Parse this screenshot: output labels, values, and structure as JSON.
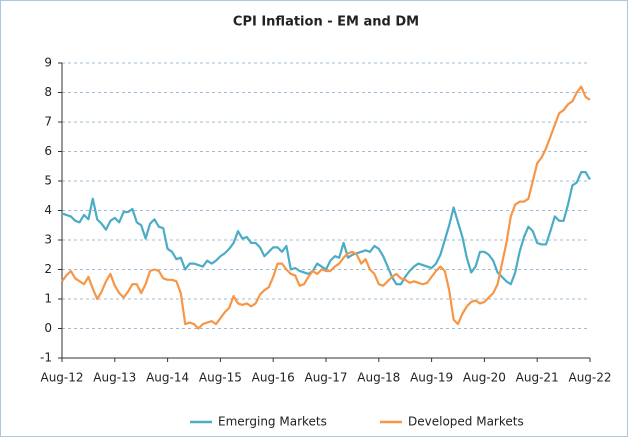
{
  "chart_data": {
    "type": "line",
    "title": "CPI Inflation - EM and DM",
    "categories": [
      "Aug-12",
      null,
      null,
      null,
      null,
      null,
      null,
      null,
      null,
      null,
      null,
      null,
      "Aug-13",
      null,
      null,
      null,
      null,
      null,
      null,
      null,
      null,
      null,
      null,
      null,
      "Aug-14",
      null,
      null,
      null,
      null,
      null,
      null,
      null,
      null,
      null,
      null,
      null,
      "Aug-15",
      null,
      null,
      null,
      null,
      null,
      null,
      null,
      null,
      null,
      null,
      null,
      "Aug-16",
      null,
      null,
      null,
      null,
      null,
      null,
      null,
      null,
      null,
      null,
      null,
      "Aug-17",
      null,
      null,
      null,
      null,
      null,
      null,
      null,
      null,
      null,
      null,
      null,
      "Aug-18",
      null,
      null,
      null,
      null,
      null,
      null,
      null,
      null,
      null,
      null,
      null,
      "Aug-19",
      null,
      null,
      null,
      null,
      null,
      null,
      null,
      null,
      null,
      null,
      null,
      "Aug-20",
      null,
      null,
      null,
      null,
      null,
      null,
      null,
      null,
      null,
      null,
      null,
      "Aug-21",
      null,
      null,
      null,
      null,
      null,
      null,
      null,
      null,
      null,
      null,
      null,
      "Aug-22"
    ],
    "series": [
      {
        "name": "Emerging Markets",
        "color": "#4bacc6",
        "values": [
          3.9,
          3.85,
          3.8,
          3.65,
          3.6,
          3.85,
          3.7,
          4.4,
          3.7,
          3.55,
          3.35,
          3.65,
          3.75,
          3.6,
          3.95,
          3.95,
          4.05,
          3.6,
          3.5,
          3.05,
          3.55,
          3.7,
          3.45,
          3.4,
          2.7,
          2.6,
          2.35,
          2.4,
          2.0,
          2.2,
          2.2,
          2.15,
          2.1,
          2.3,
          2.2,
          2.3,
          2.45,
          2.55,
          2.7,
          2.9,
          3.3,
          3.05,
          3.1,
          2.9,
          2.9,
          2.75,
          2.45,
          2.6,
          2.75,
          2.75,
          2.6,
          2.8,
          2.0,
          2.05,
          1.95,
          1.9,
          1.85,
          1.95,
          2.2,
          2.1,
          2.0,
          2.3,
          2.45,
          2.4,
          2.9,
          2.4,
          2.5,
          2.55,
          2.6,
          2.65,
          2.6,
          2.8,
          2.7,
          2.45,
          2.1,
          1.75,
          1.5,
          1.5,
          1.75,
          1.95,
          2.1,
          2.2,
          2.15,
          2.1,
          2.05,
          2.2,
          2.5,
          3.0,
          3.5,
          4.1,
          3.6,
          3.1,
          2.4,
          1.9,
          2.1,
          2.6,
          2.6,
          2.5,
          2.3,
          1.9,
          1.75,
          1.6,
          1.5,
          1.9,
          2.6,
          3.1,
          3.45,
          3.3,
          2.9,
          2.85,
          2.85,
          3.3,
          3.8,
          3.65,
          3.65,
          4.2,
          4.85,
          4.95,
          5.3,
          5.3,
          5.05
        ]
      },
      {
        "name": "Developed Markets",
        "color": "#f79646",
        "values": [
          1.6,
          1.8,
          1.95,
          1.7,
          1.6,
          1.5,
          1.75,
          1.35,
          1.0,
          1.25,
          1.6,
          1.85,
          1.45,
          1.2,
          1.05,
          1.25,
          1.5,
          1.5,
          1.2,
          1.5,
          1.95,
          2.0,
          1.95,
          1.7,
          1.65,
          1.65,
          1.6,
          1.2,
          0.15,
          0.2,
          0.15,
          0.0,
          0.15,
          0.2,
          0.25,
          0.15,
          0.35,
          0.55,
          0.7,
          1.1,
          0.85,
          0.8,
          0.85,
          0.75,
          0.85,
          1.15,
          1.3,
          1.4,
          1.75,
          2.2,
          2.2,
          2.0,
          1.85,
          1.8,
          1.45,
          1.5,
          1.75,
          1.95,
          1.85,
          2.0,
          1.95,
          1.95,
          2.1,
          2.2,
          2.4,
          2.55,
          2.6,
          2.5,
          2.2,
          2.35,
          2.0,
          1.85,
          1.5,
          1.45,
          1.6,
          1.75,
          1.85,
          1.7,
          1.65,
          1.55,
          1.6,
          1.55,
          1.5,
          1.55,
          1.75,
          1.95,
          2.1,
          1.95,
          1.3,
          0.3,
          0.15,
          0.5,
          0.75,
          0.9,
          0.95,
          0.85,
          0.9,
          1.05,
          1.2,
          1.5,
          2.2,
          2.9,
          3.8,
          4.2,
          4.3,
          4.3,
          4.4,
          5.0,
          5.6,
          5.8,
          6.1,
          6.5,
          6.9,
          7.3,
          7.4,
          7.6,
          7.7,
          8.0,
          8.2,
          7.85,
          7.75
        ]
      }
    ],
    "ylim": [
      -1,
      9
    ],
    "yticks": [
      -1,
      0,
      1,
      2,
      3,
      4,
      5,
      6,
      7,
      8,
      9
    ],
    "grid": true,
    "legend": "bottom"
  }
}
